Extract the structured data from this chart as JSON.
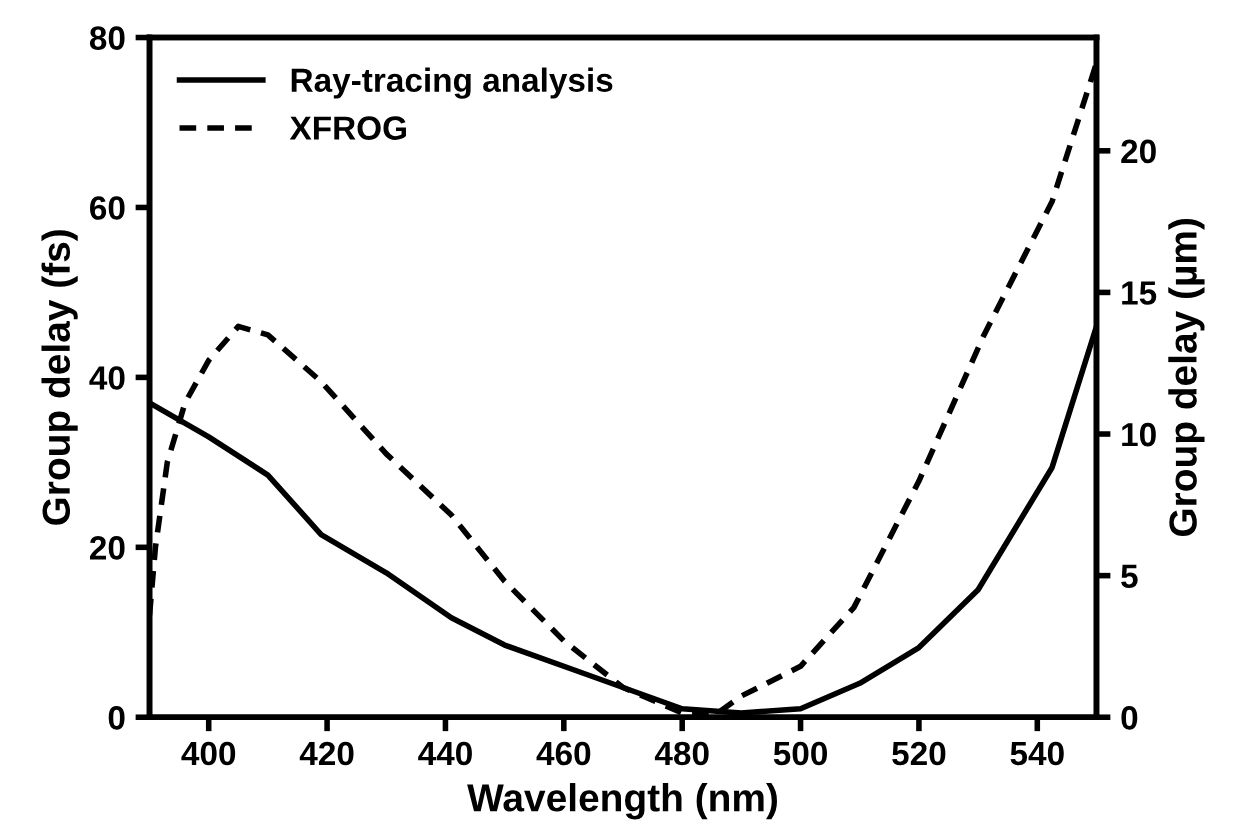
{
  "chart_data": {
    "type": "line",
    "xlabel": "Wavelength (nm)",
    "ylabel": "Group delay (fs)",
    "y2label": "Group delay (µm)",
    "xlim": [
      390,
      550
    ],
    "xticks": [
      400,
      420,
      440,
      460,
      480,
      500,
      520,
      540
    ],
    "ylim": [
      0,
      80
    ],
    "yticks": [
      0,
      20,
      40,
      60,
      80
    ],
    "y2lim": [
      0,
      24
    ],
    "y2ticks": [
      0,
      5,
      10,
      15,
      20
    ],
    "legend": "top left",
    "grid": false,
    "series": [
      {
        "name": "Ray-tracing analysis",
        "color": "#000000",
        "line_style": "solid",
        "x": [
          390,
          400,
          410,
          419,
          430,
          441,
          450,
          464,
          470,
          480,
          490,
          500,
          510,
          520,
          530,
          542.5,
          550
        ],
        "values": [
          37,
          33,
          28.5,
          21.5,
          17,
          11.7,
          8.5,
          5,
          3.5,
          1,
          0.5,
          1,
          4,
          8.2,
          15,
          29.4,
          46
        ]
      },
      {
        "name": "XFROG",
        "color": "#000000",
        "line_style": "dashed",
        "x": [
          390,
          391,
          393,
          396,
          400,
          405,
          410,
          419,
          430,
          441,
          450,
          460,
          470,
          480,
          486,
          490,
          500,
          509,
          520,
          531,
          542.5,
          550
        ],
        "values": [
          12,
          20,
          30,
          37,
          42,
          46,
          45,
          39.5,
          31,
          23.8,
          16,
          9,
          3.5,
          0.5,
          0.5,
          2.5,
          6,
          12.9,
          27.8,
          45,
          60.7,
          77
        ]
      }
    ]
  }
}
